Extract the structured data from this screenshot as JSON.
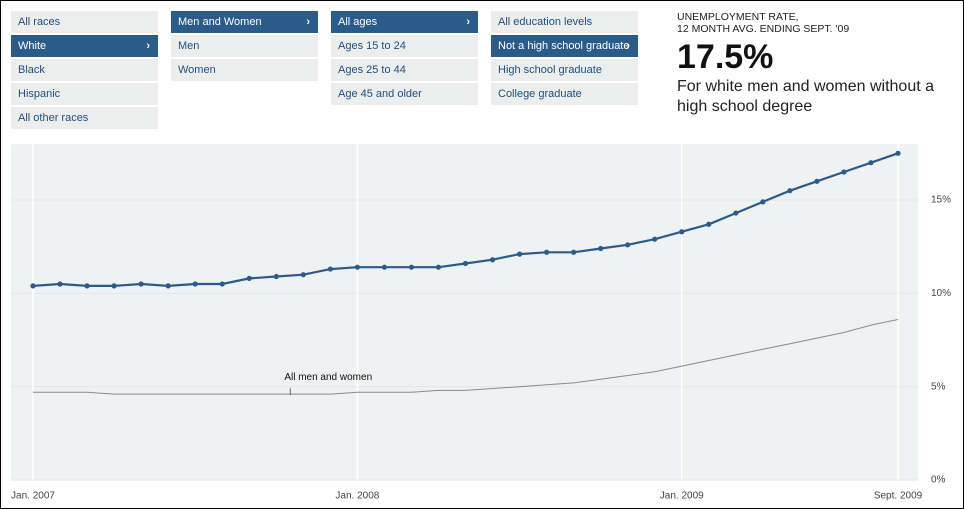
{
  "filters": [
    {
      "options": [
        "All races",
        "White",
        "Black",
        "Hispanic",
        "All other races"
      ],
      "selected": 1
    },
    {
      "options": [
        "Men and Women",
        "Men",
        "Women"
      ],
      "selected": 0
    },
    {
      "options": [
        "All ages",
        "Ages 15 to 24",
        "Ages 25 to 44",
        "Age 45 and older"
      ],
      "selected": 0
    },
    {
      "options": [
        "All education levels",
        "Not a high school graduate",
        "High school graduate",
        "College graduate"
      ],
      "selected": 1
    }
  ],
  "headline": {
    "kicker": [
      "UNEMPLOYMENT RATE,",
      "12 MONTH AVG. ENDING SEPT. '09"
    ],
    "figure": "17.5%",
    "description": "For white men and women without a high school degree"
  },
  "chart_data": {
    "type": "line",
    "x": [
      "2007-01",
      "2007-02",
      "2007-03",
      "2007-04",
      "2007-05",
      "2007-06",
      "2007-07",
      "2007-08",
      "2007-09",
      "2007-10",
      "2007-11",
      "2007-12",
      "2008-01",
      "2008-02",
      "2008-03",
      "2008-04",
      "2008-05",
      "2008-06",
      "2008-07",
      "2008-08",
      "2008-09",
      "2008-10",
      "2008-11",
      "2008-12",
      "2009-01",
      "2009-02",
      "2009-03",
      "2009-04",
      "2009-05",
      "2009-06",
      "2009-07",
      "2009-08",
      "2009-09"
    ],
    "series": [
      {
        "color": "#2c5b8a",
        "markers": true,
        "values": [
          10.4,
          10.5,
          10.4,
          10.4,
          10.5,
          10.4,
          10.5,
          10.5,
          10.8,
          10.9,
          11.0,
          11.3,
          11.4,
          11.4,
          11.4,
          11.4,
          11.6,
          11.8,
          12.1,
          12.2,
          12.2,
          12.4,
          12.6,
          12.9,
          13.3,
          13.7,
          14.3,
          14.9,
          15.5,
          16.0,
          16.5,
          17.0,
          17.5
        ]
      },
      {
        "name": "All men and women",
        "color": "#8a8a8a",
        "markers": false,
        "values": [
          4.7,
          4.7,
          4.7,
          4.6,
          4.6,
          4.6,
          4.6,
          4.6,
          4.6,
          4.6,
          4.6,
          4.6,
          4.7,
          4.7,
          4.7,
          4.8,
          4.8,
          4.9,
          5.0,
          5.1,
          5.2,
          5.4,
          5.6,
          5.8,
          6.1,
          6.4,
          6.7,
          7.0,
          7.3,
          7.6,
          7.9,
          8.3,
          8.6
        ]
      }
    ],
    "xlim": [
      "2007-01",
      "2009-09"
    ],
    "xticks": [
      {
        "value": "2007-01",
        "label": "Jan. 2007"
      },
      {
        "value": "2008-01",
        "label": "Jan. 2008"
      },
      {
        "value": "2009-01",
        "label": "Jan. 2009"
      },
      {
        "value": "2009-09",
        "label": "Sept. 2009"
      }
    ],
    "ylim": [
      0,
      18
    ],
    "yticks": [
      {
        "value": 0,
        "label": "0%"
      },
      {
        "value": 5,
        "label": "5%"
      },
      {
        "value": 10,
        "label": "10%"
      },
      {
        "value": 15,
        "label": "15%"
      }
    ],
    "grid": true
  }
}
